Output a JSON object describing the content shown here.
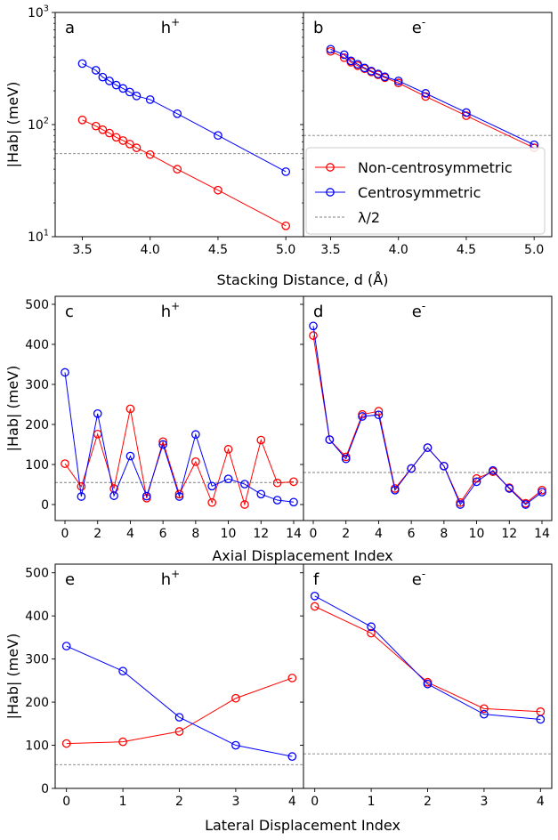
{
  "figure": {
    "row_xlabels": [
      "Stacking Distance, d (Å)",
      "Axial Displacement Index",
      "Lateral Displacement Index"
    ],
    "ylabel": "|Hab| (meV)",
    "legend": [
      {
        "key": "noncentro",
        "label": "Non-centrosymmetric",
        "color": "#ff0000"
      },
      {
        "key": "centro",
        "label": "Centrosymmetric",
        "color": "#0000ff"
      },
      {
        "key": "lambda",
        "label": "λ/2",
        "color": "#808080"
      }
    ]
  },
  "chart_data": [
    {
      "panel": "a",
      "carrier": "h⁺",
      "type": "line",
      "yscale": "log",
      "xlim": [
        3.3,
        5.13
      ],
      "ylim": [
        10,
        1000
      ],
      "xticks": [
        3.5,
        4.0,
        4.5,
        5.0
      ],
      "xtick_labels": [
        "3.5",
        "4.0",
        "4.5",
        "5.0"
      ],
      "yticks": [
        10,
        100,
        1000
      ],
      "ytick_labels": [
        "10¹",
        "10²",
        "10³"
      ],
      "lambda_half": 55,
      "x": [
        3.5,
        3.6,
        3.65,
        3.7,
        3.75,
        3.8,
        3.85,
        3.9,
        4.0,
        4.2,
        4.5,
        5.0
      ],
      "series": [
        {
          "key": "noncentro",
          "name": "Non-centrosymmetric",
          "values": [
            110,
            97,
            90,
            84,
            77,
            72,
            67,
            62,
            54,
            40,
            26,
            12.5
          ]
        },
        {
          "key": "centro",
          "name": "Centrosymmetric",
          "values": [
            350,
            305,
            265,
            245,
            225,
            210,
            195,
            180,
            167,
            125,
            80,
            38
          ]
        }
      ]
    },
    {
      "panel": "b",
      "carrier": "e⁻",
      "type": "line",
      "yscale": "log",
      "xlim": [
        3.3,
        5.13
      ],
      "ylim": [
        10,
        1000
      ],
      "xticks": [
        3.5,
        4.0,
        4.5,
        5.0
      ],
      "xtick_labels": [
        "3.5",
        "4.0",
        "4.5",
        "5.0"
      ],
      "yticks": [
        10,
        100,
        1000
      ],
      "ytick_labels": [
        "10¹",
        "10²",
        "10³"
      ],
      "lambda_half": 80,
      "x": [
        3.5,
        3.6,
        3.65,
        3.7,
        3.75,
        3.8,
        3.85,
        3.9,
        4.0,
        4.2,
        4.5,
        5.0
      ],
      "series": [
        {
          "key": "noncentro",
          "name": "Non-centrosymmetric",
          "values": [
            450,
            395,
            360,
            335,
            315,
            295,
            278,
            262,
            235,
            178,
            120,
            62
          ]
        },
        {
          "key": "centro",
          "name": "Centrosymmetric",
          "values": [
            470,
            420,
            370,
            345,
            320,
            300,
            283,
            267,
            245,
            190,
            128,
            66
          ]
        }
      ]
    },
    {
      "panel": "c",
      "carrier": "h⁺",
      "type": "line",
      "xlim": [
        -0.6,
        14.6
      ],
      "ylim": [
        -40,
        520
      ],
      "xticks": [
        0,
        2,
        4,
        6,
        8,
        10,
        12,
        14
      ],
      "xtick_labels": [
        "0",
        "2",
        "4",
        "6",
        "8",
        "10",
        "12",
        "14"
      ],
      "yticks": [
        0,
        100,
        200,
        300,
        400,
        500
      ],
      "ytick_labels": [
        "0",
        "100",
        "200",
        "300",
        "400",
        "500"
      ],
      "lambda_half": 55,
      "x": [
        0,
        1,
        2,
        3,
        4,
        5,
        6,
        7,
        8,
        9,
        10,
        11,
        12,
        13,
        14
      ],
      "series": [
        {
          "key": "noncentro",
          "name": "Non-centrosymmetric",
          "values": [
            102,
            45,
            176,
            40,
            239,
            16,
            157,
            26,
            107,
            5,
            138,
            0,
            161,
            54,
            57
          ]
        },
        {
          "key": "centro",
          "name": "Centrosymmetric",
          "values": [
            330,
            20,
            227,
            22,
            121,
            21,
            150,
            20,
            175,
            46,
            64,
            51,
            26,
            11,
            6
          ]
        }
      ]
    },
    {
      "panel": "d",
      "carrier": "e⁻",
      "type": "line",
      "xlim": [
        -0.6,
        14.6
      ],
      "ylim": [
        -40,
        520
      ],
      "xticks": [
        0,
        2,
        4,
        6,
        8,
        10,
        12,
        14
      ],
      "xtick_labels": [
        "0",
        "2",
        "4",
        "6",
        "8",
        "10",
        "12",
        "14"
      ],
      "yticks": [
        0,
        100,
        200,
        300,
        400,
        500
      ],
      "ytick_labels": [
        "0",
        "100",
        "200",
        "300",
        "400",
        "500"
      ],
      "lambda_half": 80,
      "x": [
        0,
        1,
        2,
        3,
        4,
        5,
        6,
        7,
        8,
        9,
        10,
        11,
        12,
        13,
        14
      ],
      "series": [
        {
          "key": "noncentro",
          "name": "Non-centrosymmetric",
          "values": [
            422,
            162,
            119,
            225,
            233,
            40,
            90,
            142,
            96,
            5,
            65,
            82,
            42,
            3,
            36
          ]
        },
        {
          "key": "centro",
          "name": "Centrosymmetric",
          "values": [
            446,
            162,
            114,
            220,
            224,
            36,
            90,
            142,
            96,
            0,
            57,
            85,
            40,
            0,
            31
          ]
        }
      ]
    },
    {
      "panel": "e",
      "carrier": "h⁺",
      "type": "line",
      "xlim": [
        -0.2,
        4.2
      ],
      "ylim": [
        0,
        520
      ],
      "xticks": [
        0,
        1,
        2,
        3,
        4
      ],
      "xtick_labels": [
        "0",
        "1",
        "2",
        "3",
        "4"
      ],
      "yticks": [
        0,
        100,
        200,
        300,
        400,
        500
      ],
      "ytick_labels": [
        "0",
        "100",
        "200",
        "300",
        "400",
        "500"
      ],
      "lambda_half": 55,
      "x": [
        0,
        1,
        2,
        3,
        4
      ],
      "series": [
        {
          "key": "noncentro",
          "name": "Non-centrosymmetric",
          "values": [
            104,
            108,
            132,
            209,
            256
          ]
        },
        {
          "key": "centro",
          "name": "Centrosymmetric",
          "values": [
            330,
            272,
            165,
            100,
            74
          ]
        }
      ]
    },
    {
      "panel": "f",
      "carrier": "e⁻",
      "type": "line",
      "xlim": [
        -0.2,
        4.2
      ],
      "ylim": [
        0,
        520
      ],
      "xticks": [
        0,
        1,
        2,
        3,
        4
      ],
      "xtick_labels": [
        "0",
        "1",
        "2",
        "3",
        "4"
      ],
      "yticks": [
        0,
        100,
        200,
        300,
        400,
        500
      ],
      "ytick_labels": [
        "0",
        "100",
        "200",
        "300",
        "400",
        "500"
      ],
      "lambda_half": 80,
      "x": [
        0,
        1,
        2,
        3,
        4
      ],
      "series": [
        {
          "key": "noncentro",
          "name": "Non-centrosymmetric",
          "values": [
            422,
            360,
            246,
            185,
            178
          ]
        },
        {
          "key": "centro",
          "name": "Centrosymmetric",
          "values": [
            446,
            375,
            242,
            172,
            160
          ]
        }
      ]
    }
  ]
}
